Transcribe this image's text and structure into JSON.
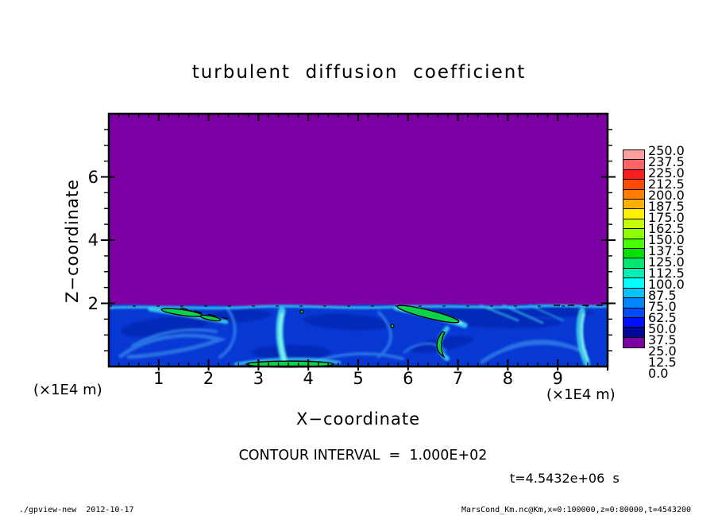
{
  "header": {
    "title": "turbulent  diffusion  coefficient"
  },
  "axes": {
    "x": {
      "label": "X−coordinate",
      "unit_left": "(×1E4 m)",
      "unit_right": "(×1E4 m)",
      "ticks": [
        "1",
        "2",
        "3",
        "4",
        "5",
        "6",
        "7",
        "8",
        "9"
      ],
      "tick_values": [
        1,
        2,
        3,
        4,
        5,
        6,
        7,
        8,
        9
      ],
      "range": [
        0,
        10
      ]
    },
    "z": {
      "label": "Z−coordinate",
      "ticks": [
        "2",
        "4",
        "6"
      ],
      "tick_values": [
        2,
        4,
        6
      ],
      "range": [
        0,
        8
      ]
    }
  },
  "colorbar": {
    "labels": [
      "250.0",
      "237.5",
      "225.0",
      "212.5",
      "200.0",
      "187.5",
      "175.0",
      "162.5",
      "150.0",
      "137.5",
      "125.0",
      "112.5",
      "100.0",
      "87.5",
      "75.0",
      "62.5",
      "50.0",
      "37.5",
      "25.0",
      "12.5",
      "0.0"
    ],
    "colors_top_to_bottom": [
      "#ff9e9e",
      "#ff6464",
      "#ff1e1e",
      "#ff4b00",
      "#ff7d00",
      "#ffb000",
      "#fff000",
      "#c8ff00",
      "#8cff00",
      "#46ff00",
      "#00e100",
      "#00e66e",
      "#00f0b4",
      "#00ffff",
      "#00c3ff",
      "#0087ff",
      "#004bff",
      "#000fff",
      "#000a96",
      "#7d00a5"
    ]
  },
  "annotations": {
    "contour_interval": "CONTOUR INTERVAL  =  1.000E+02",
    "time": "t=4.5432e+06  s"
  },
  "footer": {
    "left": "./gpview-new  2012-10-17",
    "right": "MarsCond_Km.nc@Km,x=0:100000,z=0:80000,t=4543200"
  },
  "colors": {
    "background": "#ffffff",
    "frame": "#000000",
    "field_low_purple": "#7d00a5",
    "band_base_blue": "#0839d6",
    "band_dark_blue": "#001f9e",
    "band_mid_blue": "#2e7ce8",
    "band_cyan": "#3fd2ee",
    "band_bright_cyan": "#90f2e6",
    "band_green": "#0bd24a",
    "contour_black": "#000000"
  },
  "chart_data": {
    "type": "heatmap",
    "title": "turbulent diffusion coefficient",
    "xlabel": "X−coordinate",
    "ylabel": "Z−coordinate",
    "x_unit": "(×1E4 m)",
    "z_unit": "(×1E4 m)",
    "xlim_m": [
      0,
      100000
    ],
    "zlim_m": [
      0,
      80000
    ],
    "x_ticks_1e4m": [
      1,
      2,
      3,
      4,
      5,
      6,
      7,
      8,
      9
    ],
    "z_ticks_1e4m": [
      2,
      4,
      6
    ],
    "time_s": 4543200,
    "time_label": "t=4.5432e+06 s",
    "contour_interval": 100.0,
    "color_levels": [
      0,
      12.5,
      25,
      37.5,
      50,
      62.5,
      75,
      87.5,
      100,
      112.5,
      125,
      137.5,
      150,
      162.5,
      175,
      187.5,
      200,
      212.5,
      225,
      237.5,
      250
    ],
    "legend_position": "right",
    "grid": false,
    "field_summary": {
      "upper_region": {
        "z_range_1e4m": [
          2.05,
          8
        ],
        "value_bin": "0–12.5 (purple, ≈0 everywhere)"
      },
      "boundary_layer": {
        "z_range_1e4m": [
          0,
          2.05
        ],
        "value_range": "≈12.5–100, royal-blue base with cyan swirl/plume streaks and darker blue patches"
      },
      "contoured_maxima_above_100": [
        {
          "x_1e4m": 1.5,
          "z_1e4m": 1.8,
          "shape": "thin diagonal streak"
        },
        {
          "x_1e4m": 6.4,
          "z_1e4m": 1.7,
          "shape": "elongated diagonal blob"
        },
        {
          "x_1e4m": 6.7,
          "z_1e4m": 0.9,
          "shape": "crescent"
        },
        {
          "x_1e4m": 3.6,
          "z_1e4m": 0.05,
          "shape": "strip along bottom boundary"
        }
      ],
      "notes": "black dashed 100-contour segments along the top of the boundary layer near z≈2×10⁴ m"
    }
  }
}
